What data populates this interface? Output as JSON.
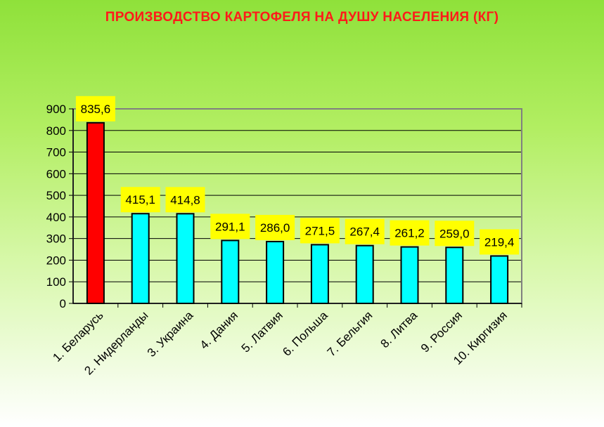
{
  "colors": {
    "highlight_bar": "#ff0000",
    "bar": "#00ffff",
    "label_bg": "#ffff00",
    "title": "#ff1a1a"
  },
  "chart_data": {
    "type": "bar",
    "title": "ПРОИЗВОДСТВО КАРТОФЕЛЯ НА ДУШУ НАСЕЛЕНИЯ (КГ)",
    "xlabel": "",
    "ylabel": "",
    "ylim": [
      0,
      900
    ],
    "yticks": [
      0,
      100,
      200,
      300,
      400,
      500,
      600,
      700,
      800,
      900
    ],
    "grid": true,
    "categories": [
      "1. Беларусь",
      "2. Нидерланды",
      "3. Украина",
      "4. Дания",
      "5. Латвия",
      "6. Польша",
      "7. Бельгия",
      "8. Литва",
      "9. Россия",
      "10. Киргизия"
    ],
    "values": [
      835.6,
      415.1,
      414.8,
      291.1,
      286.0,
      271.5,
      267.4,
      261.2,
      259.0,
      219.4
    ],
    "data_labels": [
      "835,6",
      "415,1",
      "414,8",
      "291,1",
      "286,0",
      "271,5",
      "267,4",
      "261,2",
      "259,0",
      "219,4"
    ],
    "highlight_index": 0
  }
}
